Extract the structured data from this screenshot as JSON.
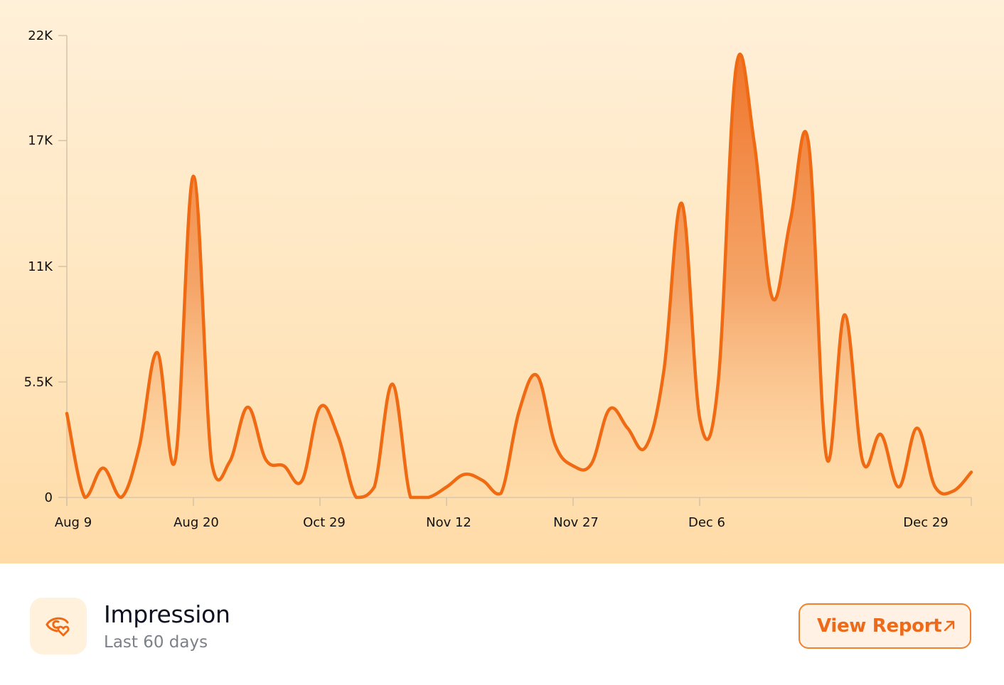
{
  "card": {
    "title": "Impression",
    "subtitle": "Last 60 days",
    "icon": "eye-heart-icon",
    "button_label": "View Report",
    "button_icon": "arrow-up-right-icon"
  },
  "colors": {
    "accent": "#ee6a1b",
    "line": "#ef6a12",
    "background_top": "#fff0d9",
    "background_bottom": "#ffdba7",
    "icon_tile": "#fff1db",
    "button_bg": "#fff1e4",
    "button_border": "#f0822f",
    "subtitle": "#7c8088"
  },
  "chart_data": {
    "type": "area",
    "title": "Impression",
    "subtitle": "Last 60 days",
    "xlabel": "",
    "ylabel": "",
    "ylim": [
      0,
      22000
    ],
    "yticks": [
      0,
      5500,
      11000,
      17000,
      22000
    ],
    "ytick_labels": [
      "0",
      "5.5K",
      "11K",
      "17K",
      "22K"
    ],
    "xtick_labels": [
      "Aug 9",
      "Aug 20",
      "Oct 29",
      "Nov 12",
      "Nov 27",
      "Dec 6",
      "Dec 29"
    ],
    "grid": false,
    "legend": null,
    "smooth": true,
    "series": [
      {
        "name": "Impression",
        "values": [
          4000,
          0,
          1400,
          0,
          2400,
          6900,
          1800,
          15300,
          1700,
          1700,
          4300,
          1800,
          1500,
          800,
          4300,
          2900,
          0,
          500,
          5400,
          0,
          0,
          500,
          1100,
          800,
          200,
          4100,
          5800,
          2500,
          1500,
          1600,
          4200,
          3300,
          2400,
          6000,
          14000,
          3700,
          5400,
          20500,
          16900,
          9500,
          13200,
          16900,
          1900,
          8700,
          1700,
          3000,
          500,
          3300,
          500,
          300,
          1200
        ]
      }
    ]
  }
}
